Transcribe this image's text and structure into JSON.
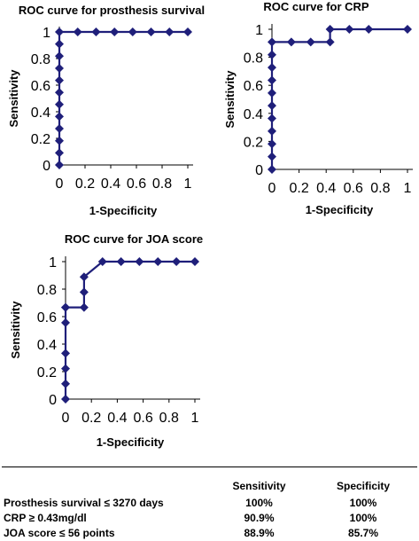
{
  "chart_data": [
    {
      "type": "line",
      "title": "ROC curve for prosthesis survival",
      "xlabel": "1-Specificity",
      "ylabel": "Sensitivity",
      "xlim": [
        0,
        1
      ],
      "ylim": [
        0,
        1
      ],
      "x_ticks": [
        "0",
        "0.2",
        "0.4",
        "0.6",
        "0.8",
        "1"
      ],
      "y_ticks": [
        "0",
        "0.2",
        "0.4",
        "0.6",
        "0.8",
        "1"
      ],
      "grid": false,
      "legend": "none",
      "color": "#1F1F7A",
      "series": [
        {
          "x": [
            0,
            0,
            0,
            0,
            0,
            0,
            0,
            0,
            0,
            0,
            0,
            0,
            0.143,
            0.286,
            0.429,
            0.571,
            0.714,
            0.857,
            1
          ],
          "y": [
            0,
            0.091,
            0.182,
            0.273,
            0.364,
            0.455,
            0.545,
            0.636,
            0.727,
            0.818,
            0.909,
            1,
            1,
            1,
            1,
            1,
            1,
            1,
            1
          ]
        }
      ]
    },
    {
      "type": "line",
      "title": "ROC curve for CRP",
      "xlabel": "1-Specificity",
      "ylabel": "Sensitivity",
      "xlim": [
        0,
        1
      ],
      "ylim": [
        0,
        1
      ],
      "x_ticks": [
        "0",
        "0.2",
        "0.4",
        "0.6",
        "0.8",
        "1"
      ],
      "y_ticks": [
        "0",
        "0.2",
        "0.4",
        "0.6",
        "0.8",
        "1"
      ],
      "grid": false,
      "legend": "none",
      "color": "#1F1F7A",
      "series": [
        {
          "x": [
            0,
            0,
            0,
            0,
            0,
            0,
            0,
            0,
            0,
            0,
            0,
            0.143,
            0.286,
            0.429,
            0.429,
            0.571,
            0.714,
            1
          ],
          "y": [
            0,
            0.091,
            0.182,
            0.273,
            0.364,
            0.455,
            0.545,
            0.636,
            0.727,
            0.818,
            0.909,
            0.909,
            0.909,
            0.909,
            1,
            1,
            1,
            1
          ]
        }
      ]
    },
    {
      "type": "line",
      "title": "ROC curve for JOA score",
      "xlabel": "1-Specificity",
      "ylabel": "Sensitivity",
      "xlim": [
        0,
        1
      ],
      "ylim": [
        0,
        1
      ],
      "x_ticks": [
        "0",
        "0.2",
        "0.4",
        "0.6",
        "0.8",
        "1"
      ],
      "y_ticks": [
        "0",
        "0.2",
        "0.4",
        "0.6",
        "0.8",
        "1"
      ],
      "grid": false,
      "legend": "none",
      "color": "#1F1F7A",
      "series": [
        {
          "x": [
            0,
            0,
            0,
            0,
            0,
            0,
            0,
            0.143,
            0.143,
            0.143,
            0.286,
            0.429,
            0.571,
            0.714,
            0.857,
            1
          ],
          "y": [
            0,
            0.111,
            0.222,
            0.333,
            0.556,
            0.667,
            0.667,
            0.667,
            0.778,
            0.889,
            1,
            1,
            1,
            1,
            1,
            1
          ]
        }
      ]
    }
  ],
  "summary_table": {
    "headers": [
      "",
      "Sensitivity",
      "Specificity"
    ],
    "rows": [
      [
        "Prosthesis survival ≤ 3270 days",
        "100%",
        "100%"
      ],
      [
        "CRP ≥ 0.43mg/dl",
        "90.9%",
        "100%"
      ],
      [
        "JOA score ≤ 56 points",
        "88.9%",
        "85.7%"
      ]
    ]
  }
}
